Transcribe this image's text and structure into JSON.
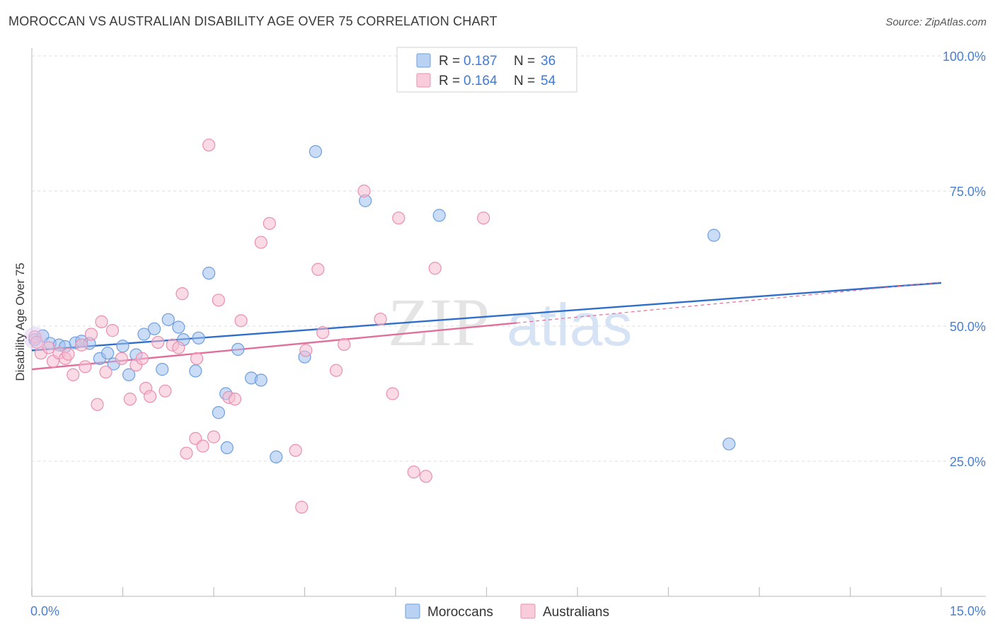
{
  "header": {
    "title": "MOROCCAN VS AUSTRALIAN DISABILITY AGE OVER 75 CORRELATION CHART",
    "source": "Source: ZipAtlas.com"
  },
  "watermark": {
    "zip": "ZIP",
    "atlas": "atlas"
  },
  "chart_data": {
    "type": "scatter",
    "title": "MOROCCAN VS AUSTRALIAN DISABILITY AGE OVER 75 CORRELATION CHART",
    "xlabel": "",
    "ylabel": "Disability Age Over 75",
    "xlim": [
      0,
      15
    ],
    "ylim": [
      0,
      105
    ],
    "x_tick_labels": {
      "left": "0.0%",
      "right": "15.0%"
    },
    "y_ticks": [
      25,
      50,
      75,
      100
    ],
    "y_tick_labels": [
      "25.0%",
      "50.0%",
      "75.0%",
      "100.0%"
    ],
    "grid": true,
    "legend": {
      "r_label": "R = ",
      "n_label": "N = ",
      "entries": [
        {
          "r": "0.187",
          "n": "36"
        },
        {
          "r": "0.164",
          "n": "54"
        }
      ]
    },
    "series": [
      {
        "name": "Moroccans",
        "color": "#9ec0ee",
        "stroke": "#6f9fdd",
        "line_color": "#2f6fcb",
        "trend": {
          "x0": 0,
          "y0": 45.5,
          "x1": 15,
          "y1": 58,
          "dashed_to": 15
        },
        "points": [
          [
            0.05,
            47.5
          ],
          [
            0.18,
            48.2
          ],
          [
            0.3,
            46.8
          ],
          [
            0.45,
            46.5
          ],
          [
            0.55,
            46.2
          ],
          [
            0.72,
            46.9
          ],
          [
            0.82,
            47.2
          ],
          [
            0.95,
            46.8
          ],
          [
            1.12,
            44.0
          ],
          [
            1.25,
            45.0
          ],
          [
            1.35,
            43.0
          ],
          [
            1.5,
            46.3
          ],
          [
            1.6,
            41.0
          ],
          [
            1.72,
            44.7
          ],
          [
            1.85,
            48.5
          ],
          [
            2.02,
            49.5
          ],
          [
            2.15,
            42.0
          ],
          [
            2.25,
            51.2
          ],
          [
            2.42,
            49.8
          ],
          [
            2.5,
            47.5
          ],
          [
            2.7,
            41.7
          ],
          [
            2.75,
            47.8
          ],
          [
            2.92,
            59.8
          ],
          [
            3.08,
            34.0
          ],
          [
            3.2,
            37.5
          ],
          [
            3.22,
            27.5
          ],
          [
            3.4,
            45.7
          ],
          [
            3.62,
            40.4
          ],
          [
            3.78,
            40.0
          ],
          [
            4.03,
            25.8
          ],
          [
            4.5,
            44.3
          ],
          [
            4.68,
            82.3
          ],
          [
            5.5,
            73.2
          ],
          [
            6.72,
            70.5
          ],
          [
            11.25,
            66.8
          ],
          [
            11.5,
            28.2
          ]
        ]
      },
      {
        "name": "Australians",
        "color": "#f6bcd0",
        "stroke": "#ea8fb0",
        "line_color": "#e0709a",
        "trend": {
          "x0": 0,
          "y0": 42.0,
          "x1": 8.0,
          "y1": 50.6,
          "dashed_to": 15
        },
        "points": [
          [
            0.05,
            48.0
          ],
          [
            0.15,
            45.0
          ],
          [
            0.28,
            46.0
          ],
          [
            0.35,
            43.5
          ],
          [
            0.45,
            45.0
          ],
          [
            0.55,
            44.0
          ],
          [
            0.6,
            44.8
          ],
          [
            0.68,
            41.0
          ],
          [
            0.82,
            46.5
          ],
          [
            0.88,
            42.5
          ],
          [
            0.98,
            48.5
          ],
          [
            1.08,
            35.5
          ],
          [
            1.15,
            50.8
          ],
          [
            1.22,
            41.5
          ],
          [
            1.33,
            49.2
          ],
          [
            1.48,
            44.0
          ],
          [
            1.62,
            36.5
          ],
          [
            1.72,
            42.8
          ],
          [
            1.82,
            44.0
          ],
          [
            1.88,
            38.5
          ],
          [
            1.95,
            37.0
          ],
          [
            2.08,
            47.0
          ],
          [
            2.2,
            38.0
          ],
          [
            2.32,
            46.5
          ],
          [
            2.42,
            46.0
          ],
          [
            2.48,
            56.0
          ],
          [
            2.55,
            26.5
          ],
          [
            2.7,
            29.2
          ],
          [
            2.82,
            27.8
          ],
          [
            2.72,
            44.0
          ],
          [
            2.92,
            83.5
          ],
          [
            3.0,
            29.5
          ],
          [
            3.08,
            54.8
          ],
          [
            3.25,
            36.8
          ],
          [
            3.35,
            36.5
          ],
          [
            3.45,
            51.0
          ],
          [
            3.78,
            65.5
          ],
          [
            3.92,
            69.0
          ],
          [
            4.35,
            27.0
          ],
          [
            4.45,
            16.5
          ],
          [
            4.52,
            45.5
          ],
          [
            4.72,
            60.5
          ],
          [
            4.8,
            48.8
          ],
          [
            5.02,
            41.8
          ],
          [
            5.15,
            46.6
          ],
          [
            5.48,
            75.0
          ],
          [
            5.75,
            51.3
          ],
          [
            5.95,
            37.5
          ],
          [
            6.05,
            70.0
          ],
          [
            6.3,
            23.0
          ],
          [
            6.5,
            22.2
          ],
          [
            6.65,
            60.7
          ],
          [
            7.45,
            70.0
          ],
          [
            0.08,
            47.0
          ]
        ]
      }
    ]
  },
  "bottom_legend": [
    "Moroccans",
    "Australians"
  ]
}
